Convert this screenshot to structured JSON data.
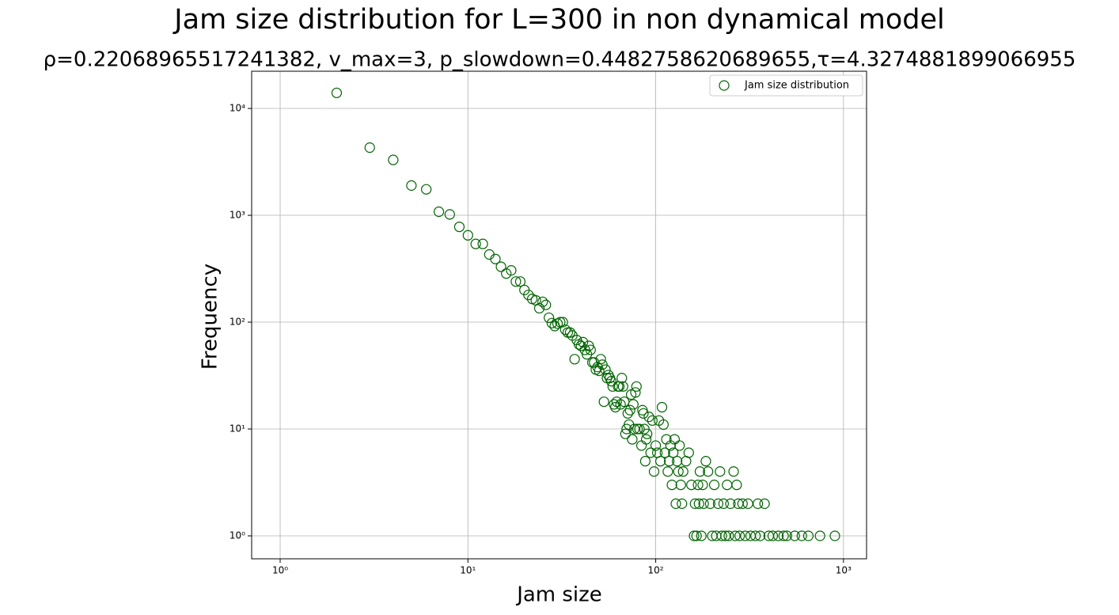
{
  "chart_data": {
    "type": "scatter",
    "title": "Jam size distribution for L=300 in non dynamical model",
    "subtitle": "ρ=0.22068965517241382, v_max=3, p_slowdown=0.4482758620689655,τ=4.3274881899066955",
    "x_label": "Jam size",
    "y_label": "Frequency",
    "xscale": "log",
    "yscale": "log",
    "grid": true,
    "legend_loc": "upper right",
    "xlim": [
      0.705,
      1327
    ],
    "ylim": [
      0.61,
      22300
    ],
    "xticks": [
      {
        "value": 1,
        "label": "10⁰"
      },
      {
        "value": 10,
        "label": "10¹"
      },
      {
        "value": 100,
        "label": "10²"
      },
      {
        "value": 1000,
        "label": "10³"
      }
    ],
    "yticks": [
      {
        "value": 1,
        "label": "10⁰"
      },
      {
        "value": 10,
        "label": "10¹"
      },
      {
        "value": 100,
        "label": "10²"
      },
      {
        "value": 1000,
        "label": "10³"
      },
      {
        "value": 10000,
        "label": "10⁴"
      }
    ],
    "series": [
      {
        "name": "Jam size distribution",
        "color": "#006400",
        "x": [
          2,
          3,
          4,
          5,
          6,
          7,
          8,
          9,
          10,
          11,
          12,
          13,
          14,
          15,
          16,
          17,
          18,
          19,
          20,
          21,
          22,
          23,
          24,
          25,
          26,
          27,
          28,
          29,
          30,
          31,
          32,
          33,
          34,
          35,
          36,
          37,
          38,
          39,
          40,
          41,
          42,
          43,
          44,
          45,
          46,
          47,
          48,
          49,
          50,
          51,
          52,
          53,
          54,
          55,
          56,
          57,
          58,
          59,
          60,
          61,
          62,
          63,
          64,
          65,
          66,
          67,
          68,
          69,
          70,
          71,
          72,
          73,
          74,
          75,
          76,
          77,
          78,
          79,
          80,
          82,
          84,
          85,
          86,
          87,
          88,
          89,
          90,
          92,
          94,
          96,
          98,
          100,
          102,
          104,
          106,
          108,
          110,
          112,
          114,
          116,
          118,
          120,
          122,
          124,
          126,
          128,
          130,
          132,
          134,
          136,
          138,
          140,
          145,
          150,
          155,
          160,
          162,
          165,
          168,
          170,
          172,
          175,
          178,
          180,
          185,
          190,
          195,
          200,
          205,
          210,
          215,
          220,
          225,
          230,
          235,
          240,
          245,
          250,
          260,
          265,
          270,
          275,
          280,
          290,
          300,
          310,
          320,
          340,
          350,
          360,
          380,
          400,
          420,
          450,
          480,
          500,
          550,
          600,
          650,
          750,
          900
        ],
        "values": [
          14000,
          4300,
          3300,
          1900,
          1750,
          1080,
          1020,
          780,
          650,
          540,
          540,
          430,
          390,
          330,
          285,
          305,
          240,
          240,
          200,
          180,
          165,
          160,
          135,
          155,
          145,
          110,
          98,
          92,
          97,
          100,
          100,
          85,
          80,
          80,
          75,
          45,
          68,
          62,
          60,
          65,
          55,
          50,
          60,
          55,
          42,
          42,
          36,
          38,
          35,
          45,
          40,
          18,
          36,
          30,
          32,
          30,
          28,
          25,
          17,
          16,
          18,
          25,
          25,
          17,
          30,
          25,
          18,
          9,
          10,
          14,
          11,
          15,
          21,
          8,
          17,
          10,
          22,
          25,
          10,
          10,
          7,
          15,
          14,
          10,
          5,
          8,
          9,
          13,
          6,
          12,
          4,
          7,
          6,
          12,
          5,
          16,
          11,
          6,
          8,
          4,
          5,
          7,
          3,
          6,
          8,
          2,
          5,
          4,
          7,
          3,
          2,
          4,
          5,
          6,
          3,
          1,
          2,
          1,
          3,
          2,
          4,
          1,
          3,
          2,
          5,
          4,
          2,
          1,
          3,
          1,
          2,
          4,
          1,
          2,
          1,
          3,
          1,
          2,
          4,
          1,
          3,
          2,
          1,
          2,
          1,
          2,
          1,
          1,
          2,
          1,
          2,
          1,
          1,
          1,
          1,
          1,
          1,
          1,
          1,
          1,
          1
        ]
      }
    ]
  }
}
